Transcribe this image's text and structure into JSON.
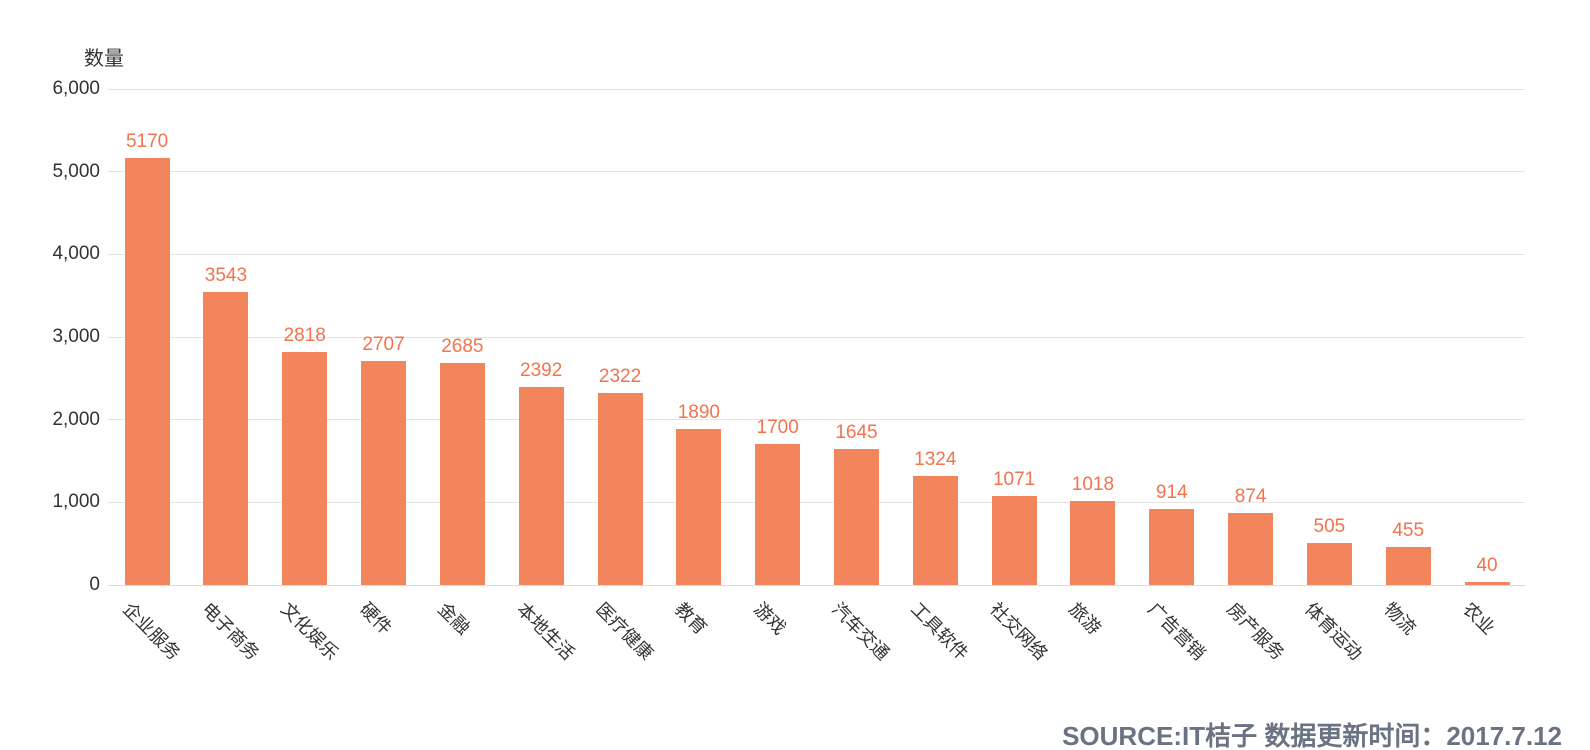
{
  "chart_data": {
    "type": "bar",
    "title": "",
    "ylabel": "数量",
    "xlabel": "",
    "categories": [
      "企业服务",
      "电子商务",
      "文化娱乐",
      "硬件",
      "金融",
      "本地生活",
      "医疗健康",
      "教育",
      "游戏",
      "汽车交通",
      "工具软件",
      "社交网络",
      "旅游",
      "广告营销",
      "房产服务",
      "体育运动",
      "物流",
      "农业"
    ],
    "values": [
      5170,
      3543,
      2818,
      2707,
      2685,
      2392,
      2322,
      1890,
      1700,
      1645,
      1324,
      1071,
      1018,
      914,
      874,
      505,
      455,
      40
    ],
    "ylim": [
      0,
      6000
    ],
    "ytick_step": 1000,
    "ytick_labels": [
      "0",
      "1,000",
      "2,000",
      "3,000",
      "4,000",
      "5,000",
      "6,000"
    ],
    "grid": true,
    "legend_position": "none",
    "bar_color": "#f2855b",
    "value_label_color": "#f3734d",
    "axis_label_color": "#333333",
    "grid_color": "#e4e4e4",
    "baseline_color": "#d8dce0"
  },
  "footer": {
    "source_text": "SOURCE:IT桔子 数据更新时间：2017.7.12",
    "color": "#6b7383"
  }
}
